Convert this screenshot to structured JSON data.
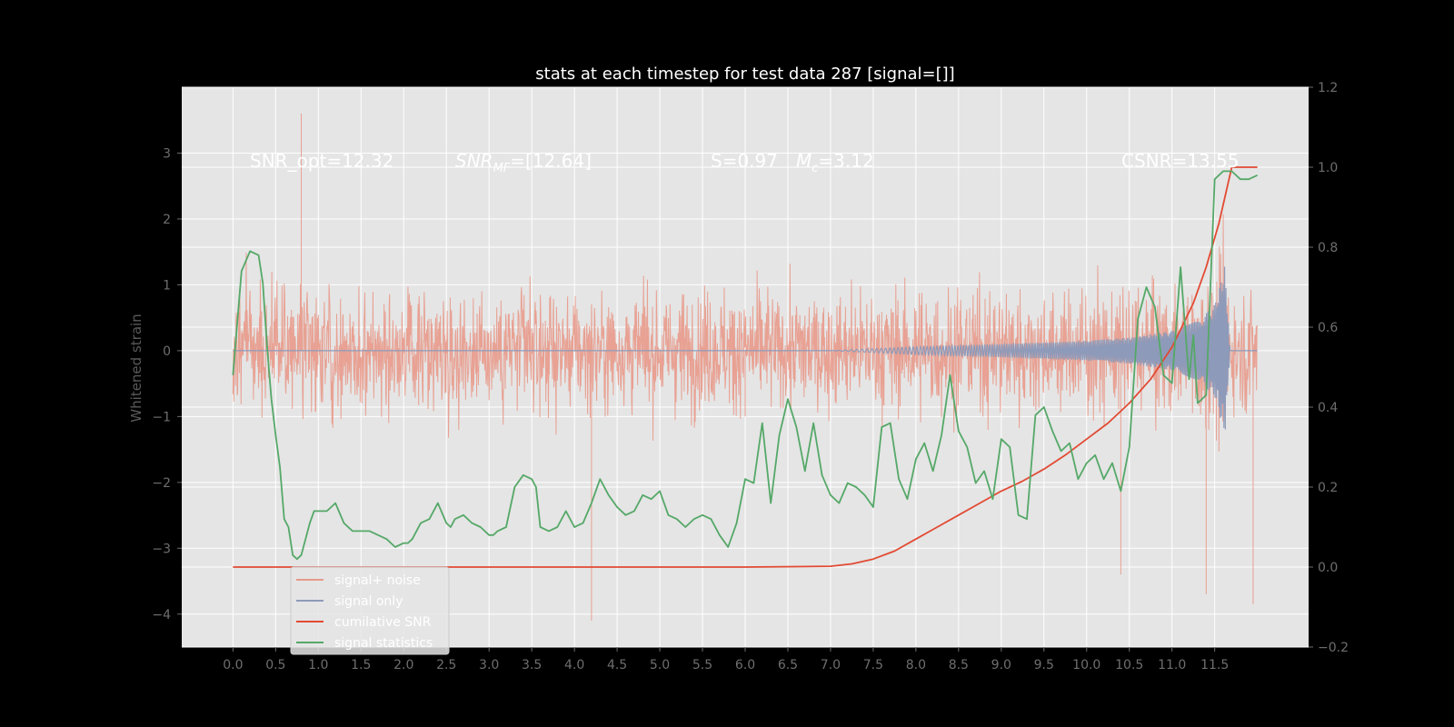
{
  "chart_data": {
    "type": "line",
    "title": "stats at each timestep for test data 287 [signal=[]]",
    "ylabel": "Whitened strain",
    "ylabel_right": "",
    "x_ticks": [
      "0.0",
      "0.5",
      "1.0",
      "1.5",
      "2.0",
      "2.5",
      "3.0",
      "3.5",
      "4.0",
      "4.5",
      "5.0",
      "5.5",
      "6.0",
      "6.5",
      "7.0",
      "7.5",
      "8.0",
      "8.5",
      "9.0",
      "9.5",
      "10.0",
      "10.5",
      "11.0",
      "11.5"
    ],
    "y_ticks_left": [
      "−4",
      "−3",
      "−2",
      "−1",
      "0",
      "1",
      "2",
      "3"
    ],
    "y_ticks_right": [
      "−0.2",
      "0.0",
      "0.2",
      "0.4",
      "0.6",
      "0.8",
      "1.0",
      "1.2"
    ],
    "xlim": [
      -0.6,
      12.6
    ],
    "ylim_left": [
      -4.5,
      4.0
    ],
    "ylim_right": [
      -0.2,
      1.2
    ],
    "grid": true,
    "legend_position": "lower-left",
    "annotations": {
      "snr_opt": "SNR_opt=12.32",
      "snr_mf_label": "SNR",
      "snr_mf_sub": "MF",
      "snr_mf_value": "=[12.64]",
      "s_value": "S=0.97",
      "mc_label": "M",
      "mc_sub": "c",
      "mc_value": "=3.12",
      "csnr": "CSNR=13.55"
    },
    "series": [
      {
        "name": "signal+ noise",
        "color": "#e8998a",
        "axis": "left",
        "x_range": [
          0.0,
          12.0
        ],
        "amplitude_typical": 1.6,
        "noise_extremes": [
          [
            0.8,
            3.6
          ],
          [
            4.2,
            -4.1
          ],
          [
            10.4,
            -3.4
          ],
          [
            11.4,
            -3.7
          ],
          [
            11.95,
            -3.85
          ],
          [
            6.0,
            -1.0
          ]
        ]
      },
      {
        "name": "signal only",
        "color": "#8e9ab9",
        "axis": "left",
        "x_range": [
          0.0,
          12.0
        ],
        "envelope": [
          [
            7.0,
            0.0
          ],
          [
            8.0,
            0.06
          ],
          [
            9.0,
            0.1
          ],
          [
            10.0,
            0.15
          ],
          [
            10.5,
            0.2
          ],
          [
            11.0,
            0.3
          ],
          [
            11.3,
            0.45
          ],
          [
            11.5,
            0.7
          ],
          [
            11.62,
            1.3
          ],
          [
            11.68,
            0.0
          ],
          [
            12.0,
            0.0
          ]
        ]
      },
      {
        "name": "cumilative SNR",
        "color": "#e24a33",
        "axis": "right",
        "x": [
          0.0,
          6.0,
          7.0,
          7.25,
          7.5,
          7.75,
          8.0,
          8.25,
          8.5,
          8.75,
          9.0,
          9.25,
          9.5,
          9.75,
          10.0,
          10.25,
          10.5,
          10.75,
          11.0,
          11.25,
          11.4,
          11.55,
          11.7,
          12.0
        ],
        "y": [
          0.0,
          0.0,
          0.002,
          0.008,
          0.02,
          0.04,
          0.07,
          0.1,
          0.13,
          0.16,
          0.19,
          0.215,
          0.245,
          0.28,
          0.32,
          0.36,
          0.41,
          0.47,
          0.55,
          0.66,
          0.75,
          0.86,
          1.0,
          1.0
        ]
      },
      {
        "name": "signal statistics",
        "color": "#55a868",
        "axis": "right",
        "x": [
          0.0,
          0.1,
          0.2,
          0.3,
          0.35,
          0.4,
          0.45,
          0.5,
          0.55,
          0.6,
          0.65,
          0.7,
          0.75,
          0.8,
          0.9,
          0.95,
          1.0,
          1.1,
          1.2,
          1.3,
          1.4,
          1.5,
          1.6,
          1.7,
          1.8,
          1.9,
          2.0,
          2.05,
          2.1,
          2.2,
          2.3,
          2.4,
          2.5,
          2.55,
          2.6,
          2.7,
          2.8,
          2.9,
          3.0,
          3.05,
          3.1,
          3.2,
          3.3,
          3.4,
          3.5,
          3.55,
          3.6,
          3.7,
          3.8,
          3.9,
          4.0,
          4.1,
          4.2,
          4.3,
          4.4,
          4.5,
          4.6,
          4.7,
          4.8,
          4.9,
          5.0,
          5.1,
          5.2,
          5.3,
          5.4,
          5.5,
          5.6,
          5.7,
          5.8,
          5.9,
          6.0,
          6.1,
          6.2,
          6.3,
          6.4,
          6.5,
          6.6,
          6.7,
          6.8,
          6.9,
          7.0,
          7.1,
          7.2,
          7.3,
          7.4,
          7.5,
          7.6,
          7.7,
          7.8,
          7.9,
          8.0,
          8.1,
          8.2,
          8.3,
          8.4,
          8.5,
          8.6,
          8.7,
          8.8,
          8.9,
          9.0,
          9.1,
          9.2,
          9.3,
          9.4,
          9.5,
          9.6,
          9.7,
          9.8,
          9.9,
          10.0,
          10.1,
          10.2,
          10.3,
          10.4,
          10.5,
          10.6,
          10.7,
          10.8,
          10.9,
          11.0,
          11.1,
          11.2,
          11.25,
          11.3,
          11.4,
          11.5,
          11.6,
          11.7,
          11.8,
          11.9,
          12.0
        ],
        "y": [
          0.48,
          0.74,
          0.79,
          0.78,
          0.71,
          0.55,
          0.42,
          0.33,
          0.25,
          0.12,
          0.1,
          0.03,
          0.02,
          0.03,
          0.11,
          0.14,
          0.14,
          0.14,
          0.16,
          0.11,
          0.09,
          0.09,
          0.09,
          0.08,
          0.07,
          0.05,
          0.06,
          0.06,
          0.07,
          0.11,
          0.12,
          0.16,
          0.11,
          0.1,
          0.12,
          0.13,
          0.11,
          0.1,
          0.08,
          0.08,
          0.09,
          0.1,
          0.2,
          0.23,
          0.22,
          0.2,
          0.1,
          0.09,
          0.1,
          0.14,
          0.1,
          0.11,
          0.16,
          0.22,
          0.18,
          0.15,
          0.13,
          0.14,
          0.18,
          0.17,
          0.19,
          0.13,
          0.12,
          0.1,
          0.12,
          0.13,
          0.12,
          0.08,
          0.05,
          0.11,
          0.22,
          0.21,
          0.36,
          0.16,
          0.33,
          0.42,
          0.35,
          0.24,
          0.36,
          0.23,
          0.18,
          0.16,
          0.21,
          0.2,
          0.18,
          0.15,
          0.35,
          0.36,
          0.22,
          0.17,
          0.27,
          0.31,
          0.24,
          0.33,
          0.48,
          0.34,
          0.3,
          0.21,
          0.24,
          0.17,
          0.32,
          0.3,
          0.13,
          0.12,
          0.38,
          0.4,
          0.34,
          0.29,
          0.31,
          0.22,
          0.26,
          0.28,
          0.22,
          0.26,
          0.19,
          0.3,
          0.62,
          0.7,
          0.65,
          0.48,
          0.46,
          0.75,
          0.47,
          0.58,
          0.41,
          0.43,
          0.97,
          0.99,
          0.99,
          0.97,
          0.97,
          0.98
        ]
      }
    ]
  }
}
